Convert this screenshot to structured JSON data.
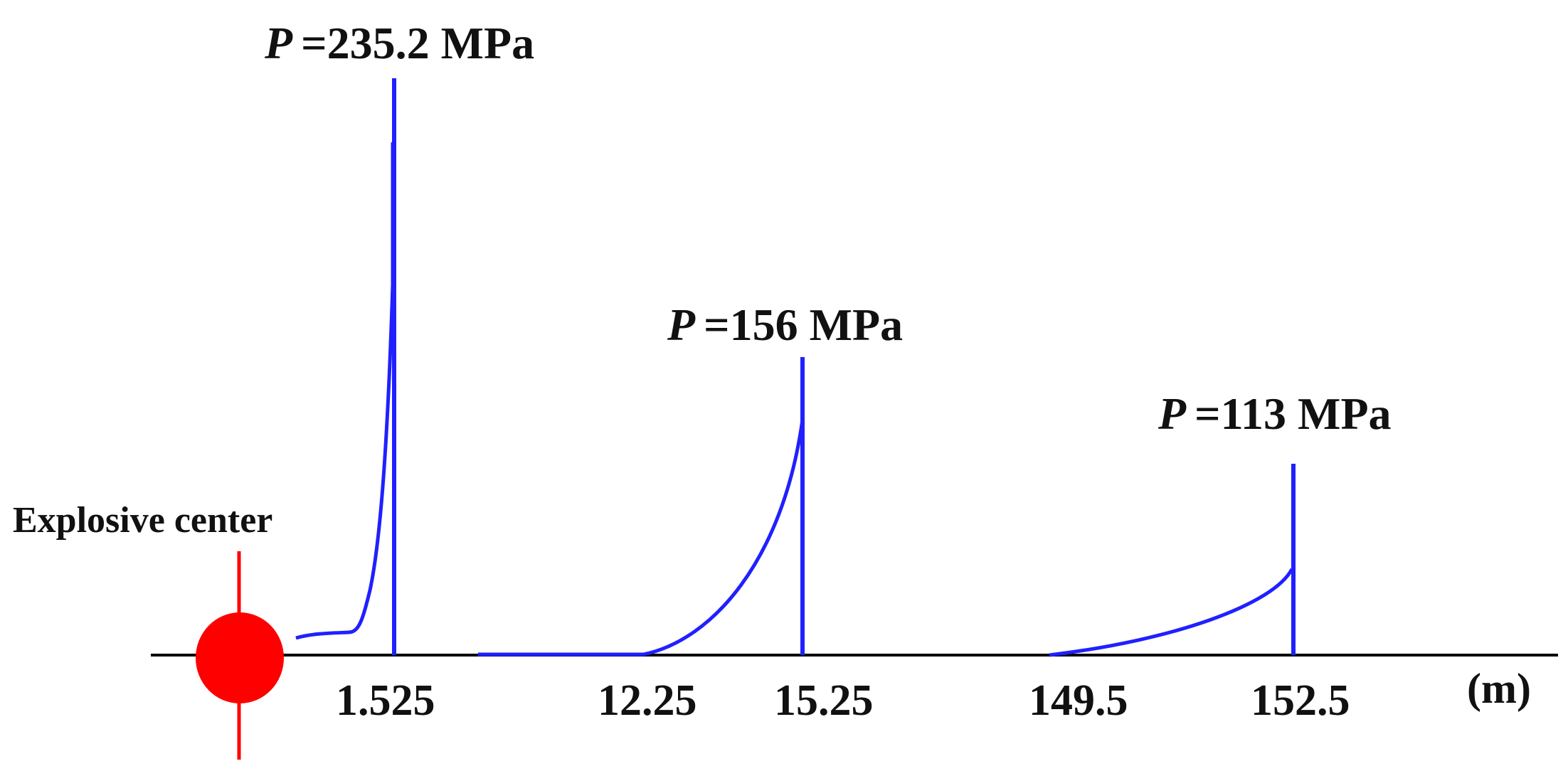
{
  "diagram": {
    "explosive_center_label": "Explosive center",
    "unit_label": "(m)",
    "pressure_symbol": "P",
    "colors": {
      "wave": "#2020ff",
      "center": "#ff0000",
      "axis": "#000000",
      "text": "#111111"
    },
    "waves": [
      {
        "peak_label": "=235.2 MPa",
        "pressure_mpa": 235.2,
        "tick_label": "1.525",
        "tick_value_m": 1.525
      },
      {
        "peak_label": "=156 MPa",
        "pressure_mpa": 156,
        "start_tick_label": "12.25",
        "start_tick_value_m": 12.25,
        "tick_label": "15.25",
        "tick_value_m": 15.25
      },
      {
        "peak_label": "=113 MPa",
        "pressure_mpa": 113,
        "start_tick_label": "149.5",
        "start_tick_value_m": 149.5,
        "tick_label": "152.5",
        "tick_value_m": 152.5
      }
    ]
  }
}
